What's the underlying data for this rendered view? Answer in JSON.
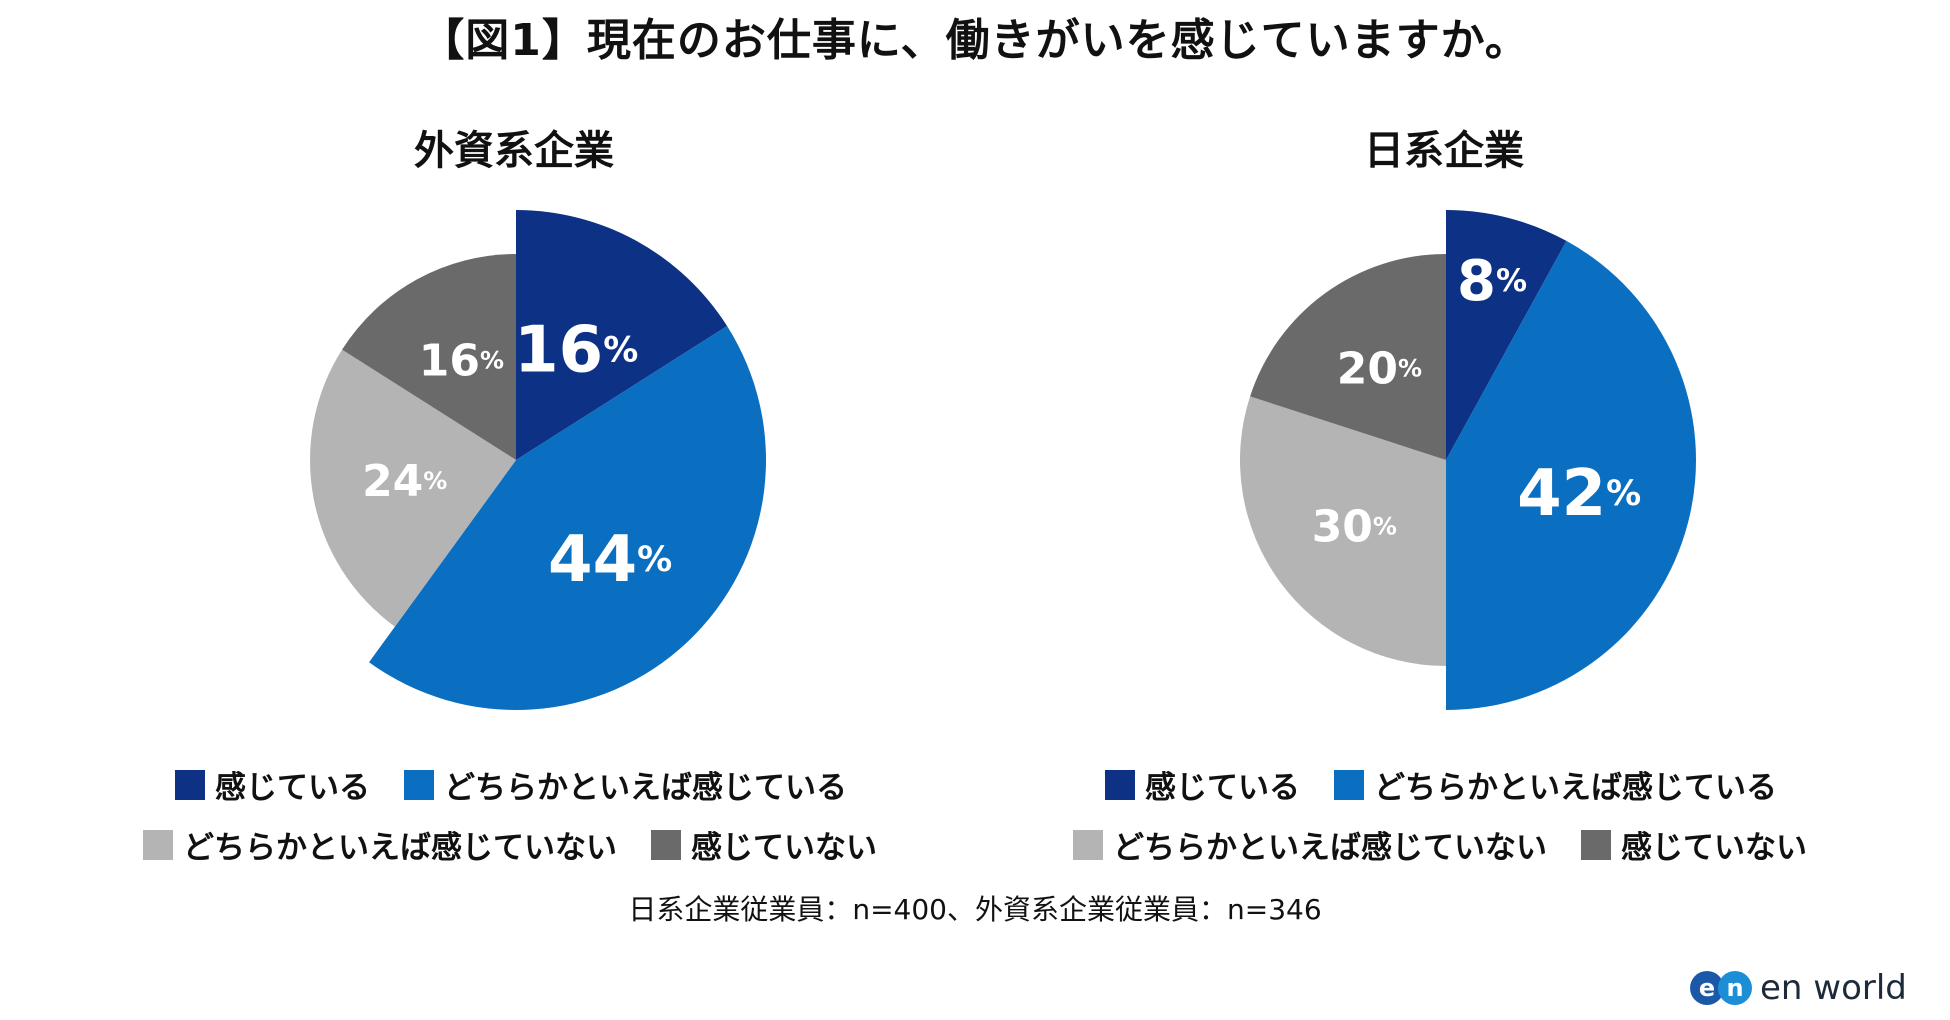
{
  "title": "【図1】現在のお仕事に、働きがいを感じていますか。",
  "colors": {
    "feel": "#0d3185",
    "rather_feel": "#0a6ec1",
    "rather_not_feel": "#b4b4b4",
    "not_feel": "#6a6a6a"
  },
  "chart_data": [
    {
      "type": "pie",
      "title": "外資系企業",
      "labels": [
        "感じている",
        "どちらかといえば感じている",
        "どちらかといえば感じていない",
        "感じていない"
      ],
      "values": [
        16,
        44,
        24,
        16
      ],
      "value_labels": [
        "16",
        "44",
        "24",
        "16"
      ],
      "unit": "%"
    },
    {
      "type": "pie",
      "title": "日系企業",
      "labels": [
        "感じている",
        "どちらかといえば感じている",
        "どちらかといえば感じていない",
        "感じていない"
      ],
      "values": [
        8,
        42,
        30,
        20
      ],
      "value_labels": [
        "8",
        "42",
        "30",
        "20"
      ],
      "unit": "%"
    }
  ],
  "legend": {
    "feel": "感じている",
    "rather_feel": "どちらかといえば感じている",
    "rather_not_feel": "どちらかといえば感じていない",
    "not_feel": "感じていない"
  },
  "note": "日系企業従業員：n=400、外資系企業従業員：n=346",
  "logo": {
    "e": "e",
    "n": "n",
    "text": "en world"
  }
}
